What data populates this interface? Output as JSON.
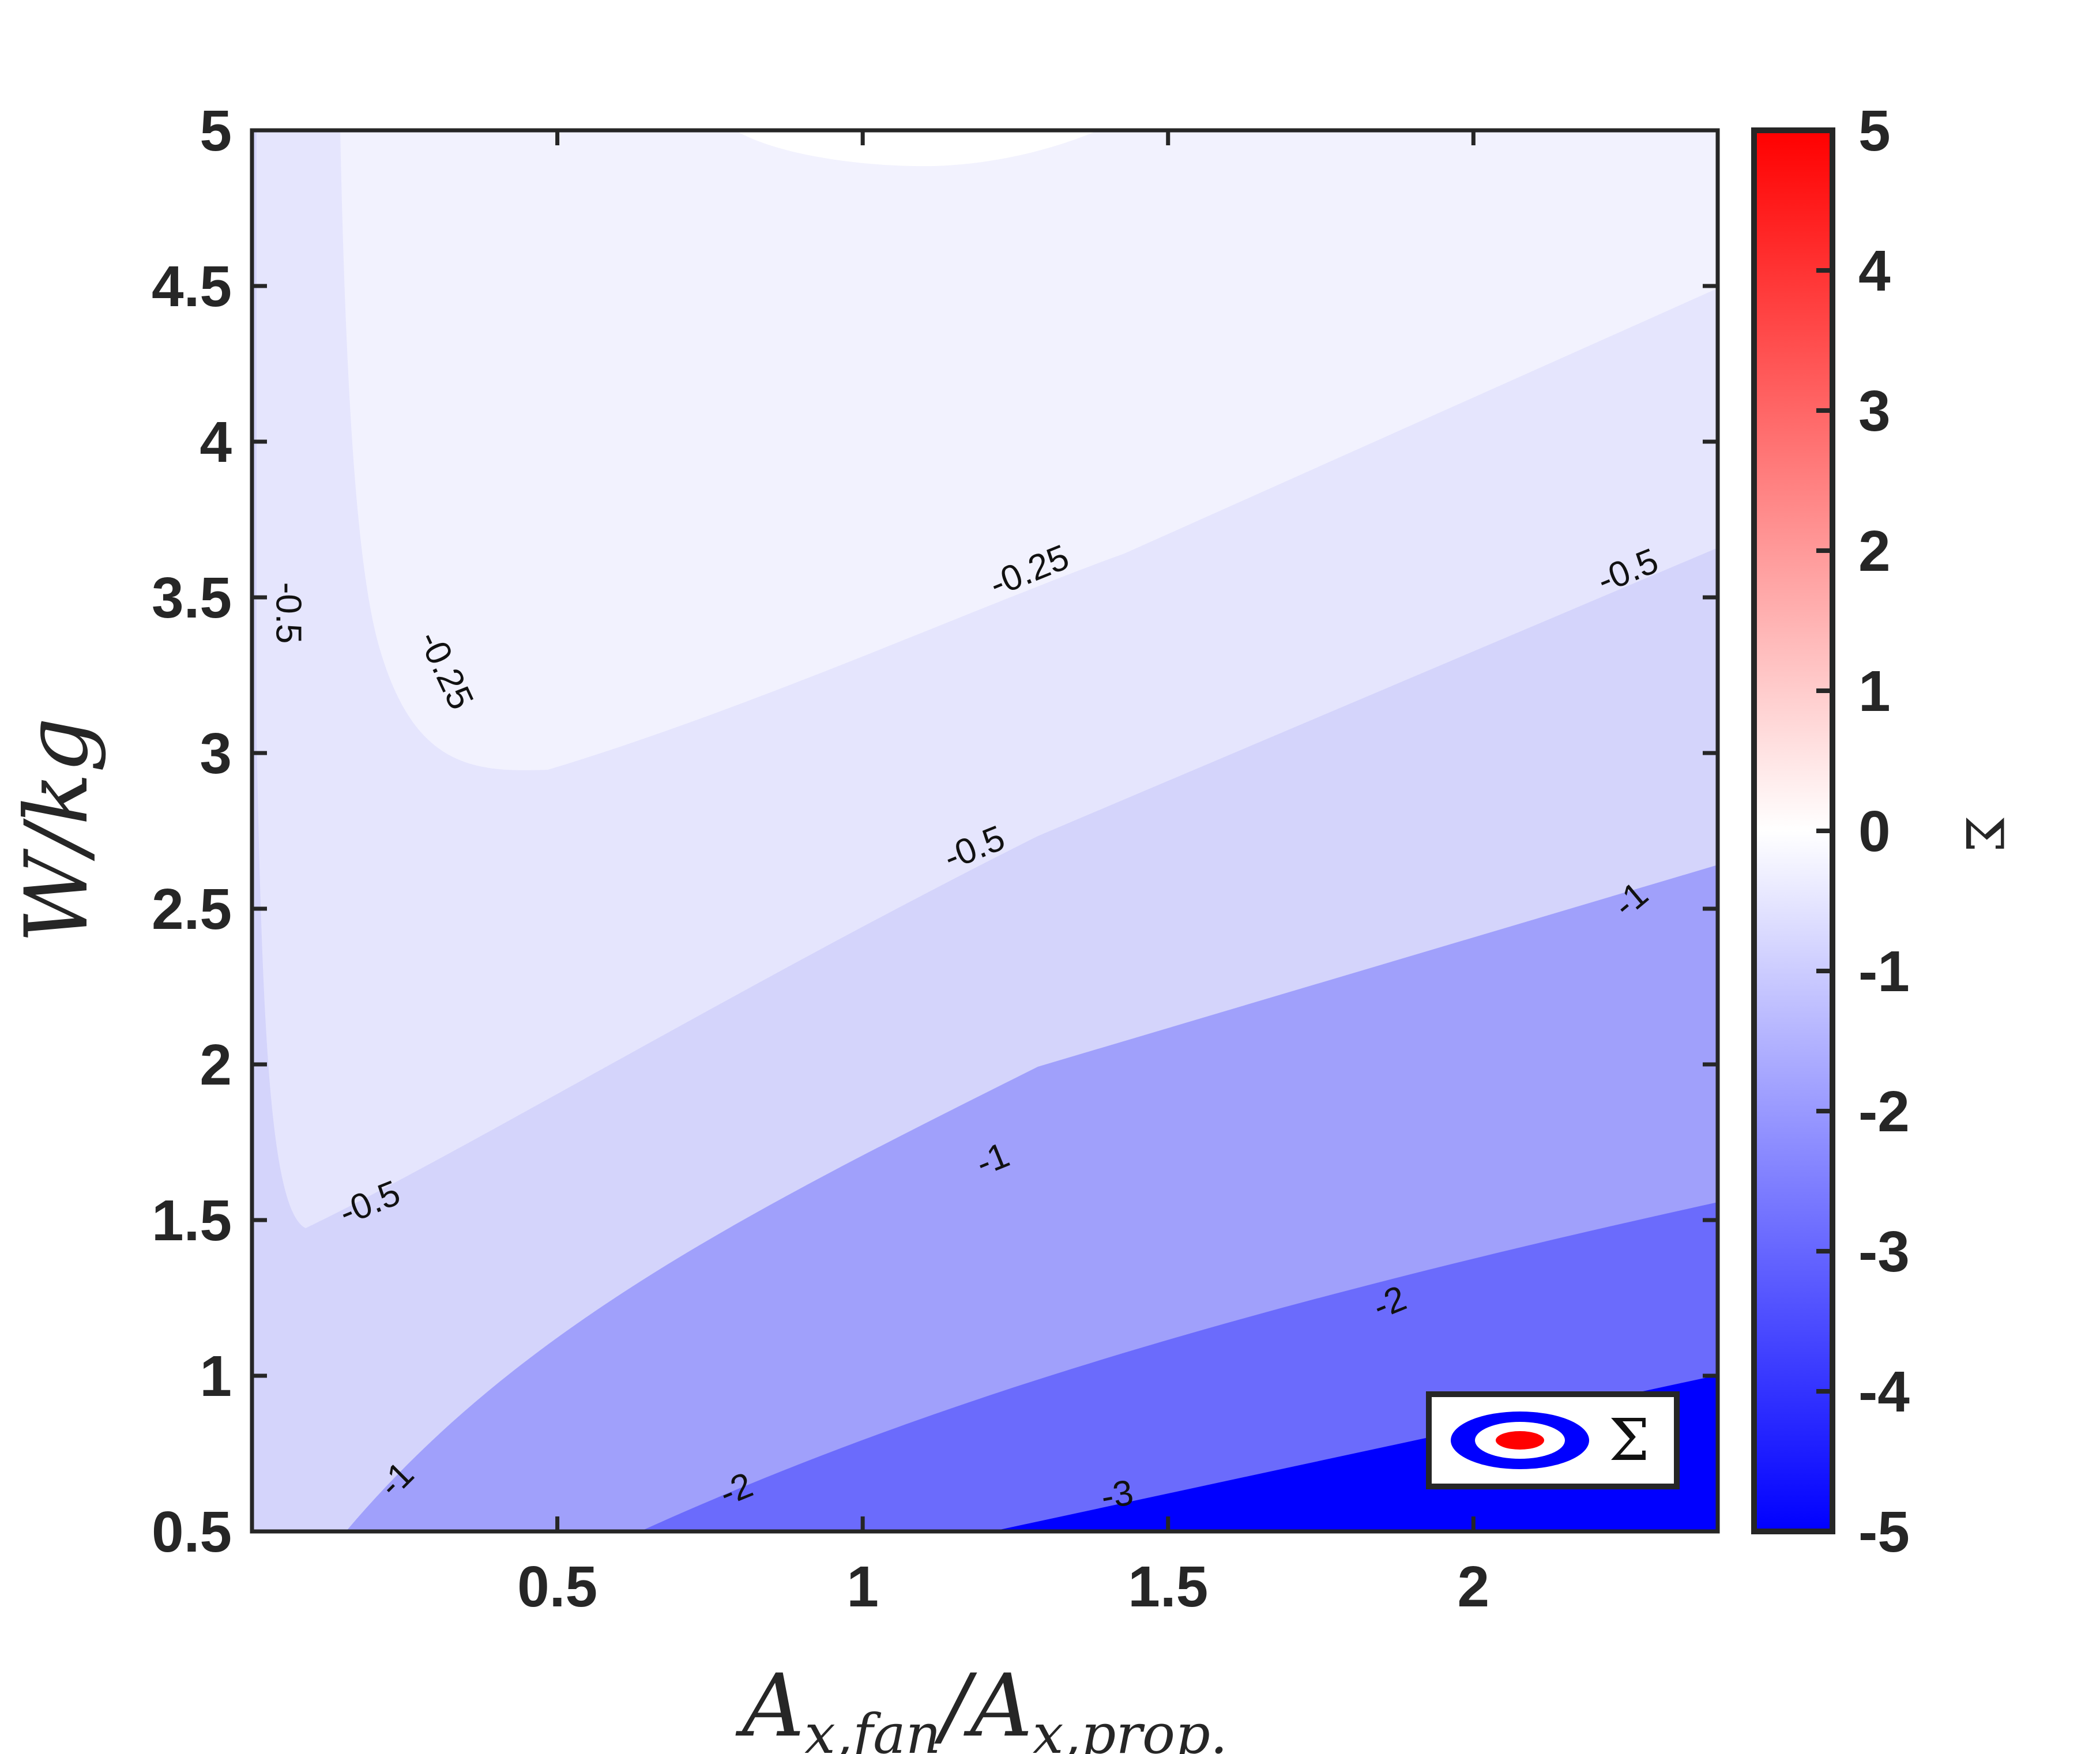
{
  "chart_data": {
    "type": "contour",
    "xlabel": "A_{x,fan}/A_{x,prop.}",
    "ylabel": "W/kg",
    "colorbar_label": "Σ",
    "xlim": [
      0.0,
      2.4
    ],
    "ylim": [
      0.5,
      5
    ],
    "x_ticks": [
      "0.5",
      "1",
      "1.5",
      "2"
    ],
    "y_ticks": [
      "0.5",
      "1",
      "1.5",
      "2",
      "2.5",
      "3",
      "3.5",
      "4",
      "4.5",
      "5"
    ],
    "colorbar_range": [
      -5,
      5
    ],
    "colorbar_ticks": [
      "-5",
      "-4",
      "-3",
      "-2",
      "-1",
      "0",
      "1",
      "2",
      "3",
      "4",
      "5"
    ],
    "colormap": {
      "negative": "#0000ff",
      "zero": "#ffffff",
      "positive": "#ff0000"
    },
    "contour_levels": [
      -3,
      -2,
      -1,
      -0.5,
      -0.25,
      0
    ],
    "contour_labels": [
      {
        "text": "-0.25",
        "x": 0.3,
        "y": 3.25
      },
      {
        "text": "-0.25",
        "x": 1.28,
        "y": 3.55
      },
      {
        "text": "-0.5",
        "x": 0.04,
        "y": 3.45
      },
      {
        "text": "-0.5",
        "x": 0.2,
        "y": 1.52
      },
      {
        "text": "-0.5",
        "x": 1.19,
        "y": 2.66
      },
      {
        "text": "-0.5",
        "x": 2.26,
        "y": 3.55
      },
      {
        "text": "-1",
        "x": 0.25,
        "y": 0.64
      },
      {
        "text": "-1",
        "x": 1.22,
        "y": 1.66
      },
      {
        "text": "-1",
        "x": 2.27,
        "y": 2.5
      },
      {
        "text": "-2",
        "x": 0.8,
        "y": 0.6
      },
      {
        "text": "-2",
        "x": 1.87,
        "y": 1.2
      },
      {
        "text": "-3",
        "x": 1.42,
        "y": 0.58
      }
    ],
    "regions": [
      {
        "range": "(-0.25, 0]",
        "color": "#ffffff"
      },
      {
        "range": "(-0.5, -0.25]",
        "color": "#f2f2fe"
      },
      {
        "range": "(-1, -0.5]",
        "color": "#e5e5fd"
      },
      {
        "range": "(-2, -1]",
        "color": "#d4d4fb"
      },
      {
        "range": "(-3, -2]",
        "color": "#a0a0fb"
      },
      {
        "range": "(-4, -3]",
        "color": "#6b6bfc"
      },
      {
        "range": "<= -4",
        "color": "#0000ff"
      }
    ],
    "legend": {
      "entry": "Σ",
      "placement": "bottom-right"
    },
    "grid": false
  }
}
